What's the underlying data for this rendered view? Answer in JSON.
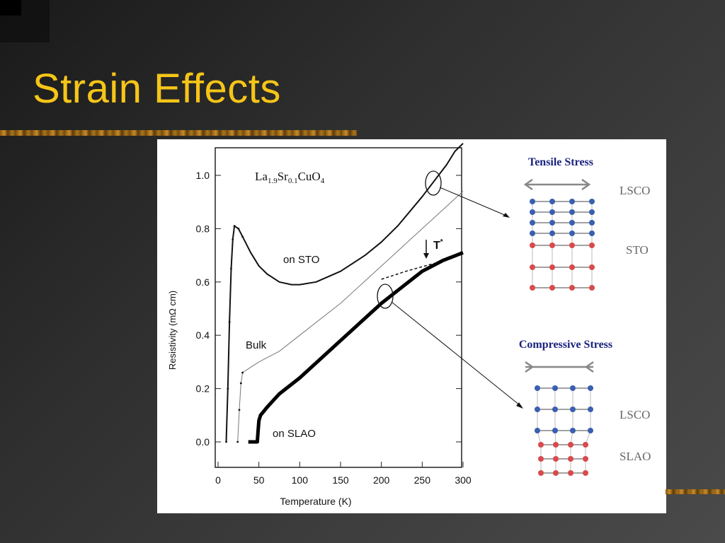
{
  "slide": {
    "title": "Strain Effects",
    "title_color": "#f5c518",
    "background": "#3a3a3a"
  },
  "chart_data": {
    "type": "line",
    "title": "La1.9Sr0.1CuO4",
    "xlabel": "Temperature (K)",
    "ylabel": "Resistivity (mΩ cm)",
    "xlim": [
      0,
      300
    ],
    "ylim": [
      -0.1,
      1.1
    ],
    "xticks": [
      "0",
      "50",
      "100",
      "150",
      "200",
      "250",
      "300"
    ],
    "yticks": [
      "0.0",
      "0.2",
      "0.4",
      "0.6",
      "0.8",
      "1.0"
    ],
    "annotations": [
      "on STO",
      "Bulk",
      "on SLAO",
      "T*"
    ],
    "series": [
      {
        "name": "on STO",
        "x": [
          10,
          12,
          14,
          16,
          18,
          20,
          25,
          30,
          40,
          50,
          60,
          75,
          90,
          100,
          120,
          150,
          180,
          200,
          220,
          250,
          280,
          290,
          300
        ],
        "y": [
          0.0,
          0.2,
          0.45,
          0.65,
          0.76,
          0.81,
          0.8,
          0.77,
          0.71,
          0.66,
          0.63,
          0.6,
          0.59,
          0.59,
          0.6,
          0.64,
          0.7,
          0.75,
          0.81,
          0.92,
          1.04,
          1.09,
          1.12
        ]
      },
      {
        "name": "Bulk",
        "x": [
          24,
          26,
          28,
          30,
          35,
          40,
          50,
          75,
          100,
          150,
          200,
          250,
          300
        ],
        "y": [
          0.0,
          0.12,
          0.22,
          0.26,
          0.27,
          0.28,
          0.3,
          0.34,
          0.4,
          0.52,
          0.66,
          0.8,
          0.94
        ]
      },
      {
        "name": "on SLAO",
        "x": [
          37,
          40,
          45,
          48,
          49,
          50,
          52,
          60,
          75,
          100,
          150,
          200,
          225,
          250,
          275,
          300
        ],
        "y": [
          0.0,
          0.0,
          0.0,
          0.0,
          0.04,
          0.08,
          0.1,
          0.13,
          0.18,
          0.24,
          0.38,
          0.52,
          0.58,
          0.64,
          0.68,
          0.71
        ]
      },
      {
        "name": "SLAO extrapolation",
        "style": "dashed",
        "x": [
          200,
          230,
          265
        ],
        "y": [
          0.61,
          0.64,
          0.67
        ]
      }
    ]
  },
  "diagram": {
    "tensile_title": "Tensile Stress",
    "compressive_title": "Compressive Stress",
    "tensile_top_label": "LSCO",
    "tensile_bottom_label": "STO",
    "compressive_top_label": "LSCO",
    "compressive_bottom_label": "SLAO",
    "blue_atom": "#3a5fb0",
    "red_atom": "#d94a4a",
    "title_color": "#1a237e"
  }
}
